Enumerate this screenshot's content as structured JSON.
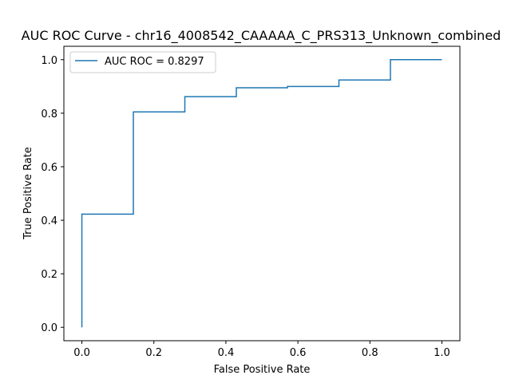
{
  "chart_data": {
    "type": "line",
    "title": "AUC ROC Curve - chr16_4008542_CAAAAA_C_PRS313_Unknown_combined",
    "xlabel": "False Positive Rate",
    "ylabel": "True Positive Rate",
    "xlim": [
      -0.05,
      1.05
    ],
    "ylim": [
      -0.05,
      1.05
    ],
    "xticks": [
      0.0,
      0.2,
      0.4,
      0.6,
      0.8,
      1.0
    ],
    "yticks": [
      0.0,
      0.2,
      0.4,
      0.6,
      0.8,
      1.0
    ],
    "xtick_labels": [
      "0.0",
      "0.2",
      "0.4",
      "0.6",
      "0.8",
      "1.0"
    ],
    "ytick_labels": [
      "0.0",
      "0.2",
      "0.4",
      "0.6",
      "0.8",
      "1.0"
    ],
    "grid": false,
    "legend_position": "upper-left",
    "series": [
      {
        "name": "AUC ROC = 0.8297",
        "color": "#1f77b4",
        "x": [
          0.0,
          0.0,
          0.143,
          0.143,
          0.286,
          0.286,
          0.429,
          0.429,
          0.571,
          0.571,
          0.714,
          0.714,
          0.857,
          0.857,
          1.0
        ],
        "y": [
          0.0,
          0.423,
          0.423,
          0.805,
          0.805,
          0.862,
          0.862,
          0.895,
          0.895,
          0.9,
          0.9,
          0.924,
          0.924,
          1.0,
          1.0
        ]
      }
    ]
  }
}
